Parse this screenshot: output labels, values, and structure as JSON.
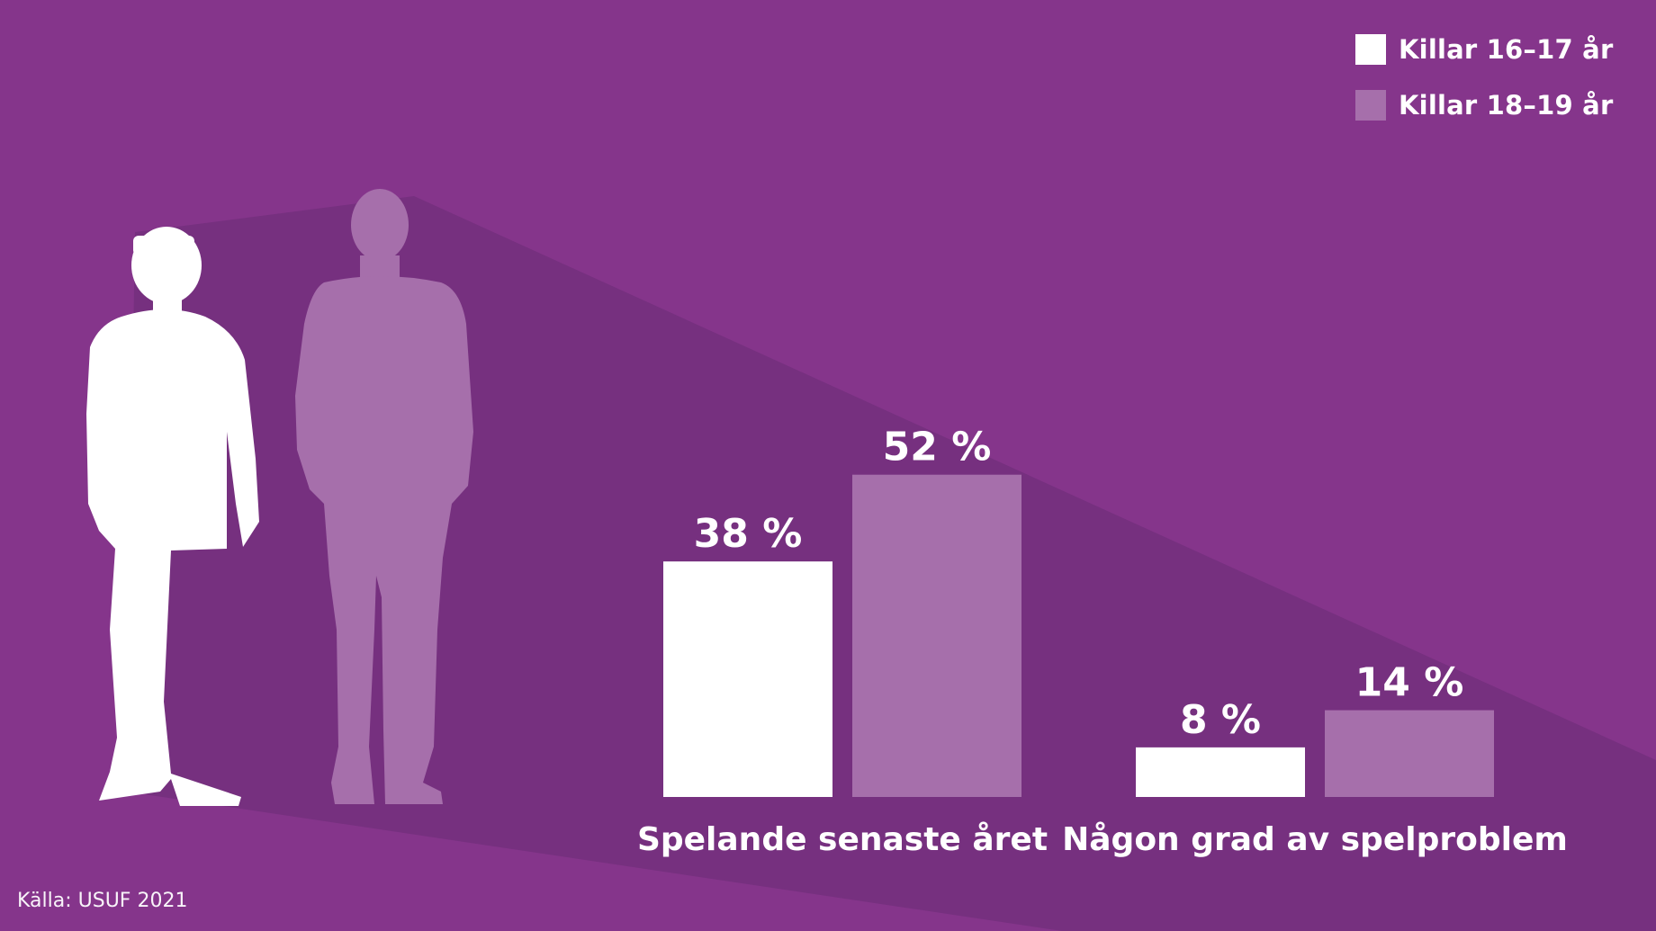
{
  "colors": {
    "background": "#85358b",
    "shadow": "#76307f",
    "series_1": "#ffffff",
    "series_2": "#a66fab"
  },
  "icons": [
    "young-man-silhouette-icon",
    "older-man-silhouette-icon"
  ],
  "chart_data": {
    "type": "bar",
    "categories": [
      "Spelande senaste året",
      "Någon grad av spelproblem"
    ],
    "series": [
      {
        "name": "Killar 16–17 år",
        "values": [
          38,
          8
        ],
        "labels": [
          "38 %",
          "8 %"
        ],
        "color": "#ffffff"
      },
      {
        "name": "Killar 18–19 år",
        "values": [
          52,
          14
        ],
        "labels": [
          "52 %",
          "14 %"
        ],
        "color": "#a66fab"
      }
    ],
    "unit": "%",
    "ylim": [
      0,
      100
    ],
    "grid": false,
    "legend_position": "top-right",
    "title": "",
    "xlabel": "",
    "ylabel": ""
  },
  "source": "Källa: USUF 2021"
}
